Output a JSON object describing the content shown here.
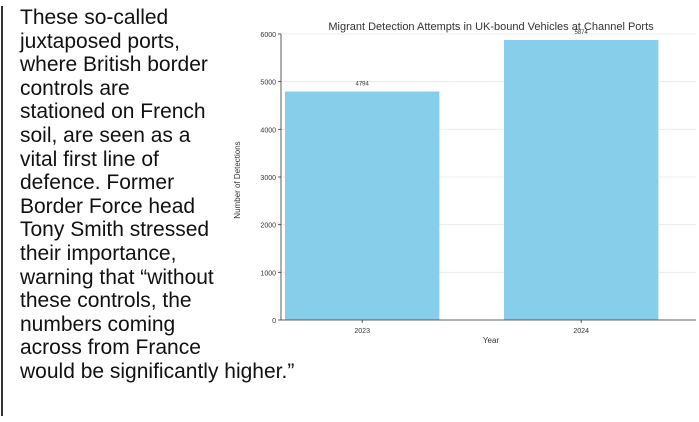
{
  "article": {
    "paragraph": "These so-called juxtaposed ports, where British border controls are stationed on French soil, are seen as a vital first line of defence. Former Border Force head Tony Smith stressed their importance, warning that “without these controls, the numbers coming across from France would be significantly higher.”"
  },
  "chart_data": {
    "type": "bar",
    "title": "Migrant Detection Attempts in UK-bound Vehicles at Channel Ports",
    "xlabel": "Year",
    "ylabel": "Number of Detections",
    "categories": [
      "2023",
      "2024"
    ],
    "values": [
      4794,
      5874
    ],
    "data_labels": [
      "4794",
      "5874"
    ],
    "ylim": [
      0,
      6000
    ],
    "yticks": [
      "0",
      "1000",
      "2000",
      "3000",
      "4000",
      "5000",
      "6000"
    ],
    "grid": true,
    "bar_color": "#87ceeb"
  }
}
